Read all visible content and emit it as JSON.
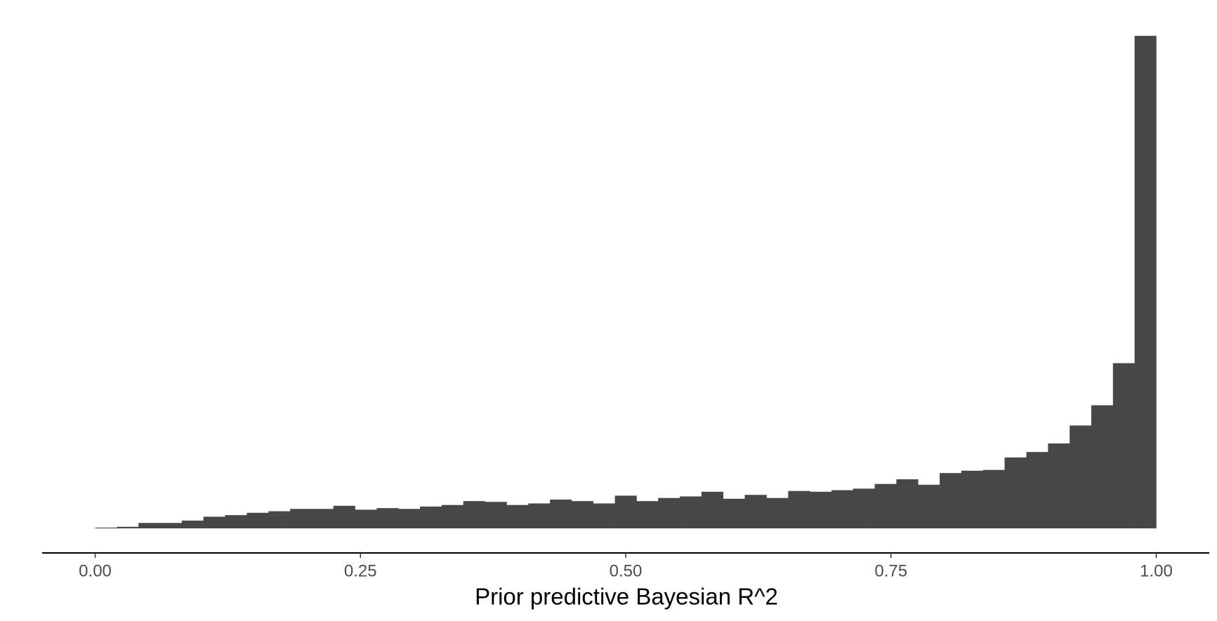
{
  "chart_data": {
    "type": "histogram",
    "x_label": "Prior predictive Bayesian R^2",
    "color": "#474747",
    "bins": [
      0,
      0.0204,
      0.0408,
      0.0612,
      0.0816,
      0.102,
      0.1224,
      0.1429,
      0.1633,
      0.1837,
      0.2041,
      0.2245,
      0.2449,
      0.2653,
      0.2857,
      0.3061,
      0.3265,
      0.3469,
      0.3673,
      0.3878,
      0.4082,
      0.4286,
      0.449,
      0.4694,
      0.4898,
      0.5102,
      0.5306,
      0.551,
      0.5714,
      0.5918,
      0.6122,
      0.6327,
      0.6531,
      0.6735,
      0.6939,
      0.7143,
      0.7347,
      0.7551,
      0.7755,
      0.7959,
      0.8163,
      0.8367,
      0.8571,
      0.8776,
      0.898,
      0.9184,
      0.9388,
      0.9592,
      0.9796,
      1
    ],
    "values": [
      1,
      2,
      7,
      7,
      10,
      15,
      17,
      20,
      22,
      25,
      25,
      29,
      24,
      26,
      25,
      28,
      30,
      35,
      34,
      30,
      32,
      37,
      35,
      32,
      42,
      35,
      39,
      41,
      47,
      38,
      43,
      39,
      48,
      47,
      49,
      51,
      57,
      63,
      56,
      71,
      74,
      75,
      91,
      98,
      109,
      132,
      158,
      212,
      632
    ],
    "xlim": [
      -0.05,
      1.05
    ],
    "ylim": [
      0,
      660
    ],
    "xticks": [
      {
        "value": 0,
        "label": "0.00"
      },
      {
        "value": 0.25,
        "label": "0.25"
      },
      {
        "value": 0.5,
        "label": "0.50"
      },
      {
        "value": 0.75,
        "label": "0.75"
      },
      {
        "value": 1,
        "label": "1.00"
      }
    ]
  }
}
